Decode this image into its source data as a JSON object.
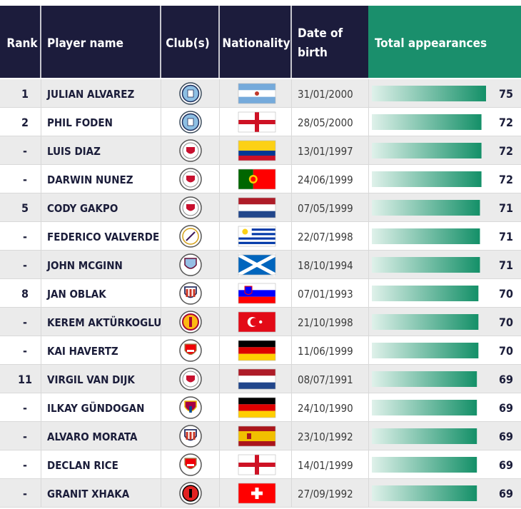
{
  "header": {
    "rank": "Rank",
    "player": "Player name",
    "club": "Club(s)",
    "nationality": "Nationality",
    "dob_line1": "Date of",
    "dob_line2": "birth",
    "total": "Total appearances"
  },
  "colors": {
    "header_navy": "#1c1c3c",
    "header_green": "#1a8f6c",
    "row_odd": "#ebebeb",
    "row_even": "#ffffff",
    "bar_start": "#dff1ea",
    "bar_end": "#149068"
  },
  "chart_data": {
    "type": "table",
    "value_axis_max": 75,
    "rows": [
      {
        "rank": "1",
        "player": "JULIAN ALVAREZ",
        "club_icon": "man-city-crest-icon",
        "flag": "argentina",
        "dob": "31/01/2000",
        "appearances": 75
      },
      {
        "rank": "2",
        "player": "PHIL FODEN",
        "club_icon": "man-city-crest-icon",
        "flag": "england",
        "dob": "28/05/2000",
        "appearances": 72
      },
      {
        "rank": "-",
        "player": "LUIS DIAZ",
        "club_icon": "liverpool-crest-icon",
        "flag": "colombia",
        "dob": "13/01/1997",
        "appearances": 72
      },
      {
        "rank": "-",
        "player": "DARWIN NUNEZ",
        "club_icon": "liverpool-crest-icon",
        "flag": "portugal",
        "dob": "24/06/1999",
        "appearances": 72
      },
      {
        "rank": "5",
        "player": "CODY GAKPO",
        "club_icon": "liverpool-crest-icon",
        "flag": "netherlands",
        "dob": "07/05/1999",
        "appearances": 71
      },
      {
        "rank": "-",
        "player": "FEDERICO VALVERDE",
        "club_icon": "real-madrid-crest-icon",
        "flag": "uruguay",
        "dob": "22/07/1998",
        "appearances": 71
      },
      {
        "rank": "-",
        "player": "JOHN MCGINN",
        "club_icon": "aston-villa-crest-icon",
        "flag": "scotland",
        "dob": "18/10/1994",
        "appearances": 71
      },
      {
        "rank": "8",
        "player": "JAN OBLAK",
        "club_icon": "atletico-madrid-crest-icon",
        "flag": "slovenia",
        "dob": "07/01/1993",
        "appearances": 70
      },
      {
        "rank": "-",
        "player": "KEREM AKTÜRKOGLU",
        "club_icon": "galatasaray-crest-icon",
        "flag": "turkey",
        "dob": "21/10/1998",
        "appearances": 70
      },
      {
        "rank": "-",
        "player": "KAI HAVERTZ",
        "club_icon": "arsenal-crest-icon",
        "flag": "germany",
        "dob": "11/06/1999",
        "appearances": 70
      },
      {
        "rank": "11",
        "player": "VIRGIL VAN DIJK",
        "club_icon": "liverpool-crest-icon",
        "flag": "netherlands",
        "dob": "08/07/1991",
        "appearances": 69
      },
      {
        "rank": "-",
        "player": "ILKAY GÜNDOGAN",
        "club_icon": "barcelona-crest-icon",
        "flag": "germany",
        "dob": "24/10/1990",
        "appearances": 69
      },
      {
        "rank": "-",
        "player": "ALVARO MORATA",
        "club_icon": "atletico-madrid-crest-icon",
        "flag": "spain",
        "dob": "23/10/1992",
        "appearances": 69
      },
      {
        "rank": "-",
        "player": "DECLAN RICE",
        "club_icon": "arsenal-crest-icon",
        "flag": "england",
        "dob": "14/01/1999",
        "appearances": 69
      },
      {
        "rank": "-",
        "player": "GRANIT XHAKA",
        "club_icon": "leverkusen-crest-icon",
        "flag": "switzerland",
        "dob": "27/09/1992",
        "appearances": 69
      }
    ]
  }
}
